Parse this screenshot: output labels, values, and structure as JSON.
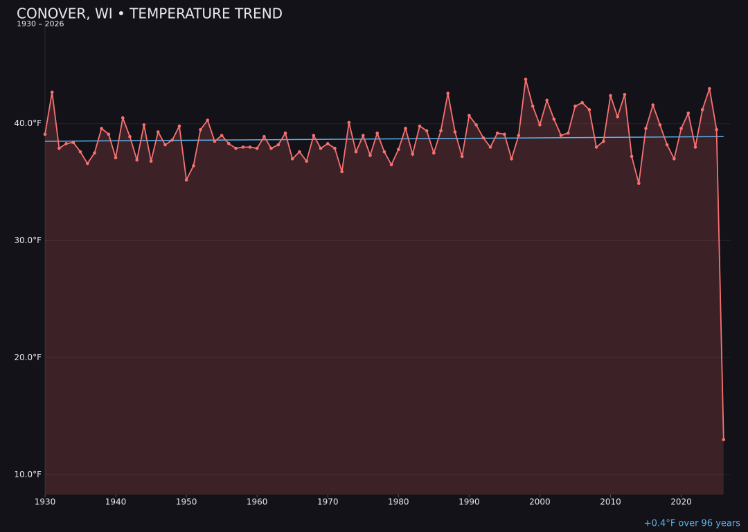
{
  "chart_data": {
    "type": "line",
    "title": "CONOVER, WI • TEMPERATURE TREND",
    "subtitle": "1930 – 2026",
    "annotation": "+0.4°F over 96 years",
    "x": [
      1930,
      1931,
      1932,
      1933,
      1934,
      1935,
      1936,
      1937,
      1938,
      1939,
      1940,
      1941,
      1942,
      1943,
      1944,
      1945,
      1946,
      1947,
      1948,
      1949,
      1950,
      1951,
      1952,
      1953,
      1954,
      1955,
      1956,
      1957,
      1958,
      1959,
      1960,
      1961,
      1962,
      1963,
      1964,
      1965,
      1966,
      1967,
      1968,
      1969,
      1970,
      1971,
      1972,
      1973,
      1974,
      1975,
      1976,
      1977,
      1978,
      1979,
      1980,
      1981,
      1982,
      1983,
      1984,
      1985,
      1986,
      1987,
      1988,
      1989,
      1990,
      1991,
      1992,
      1993,
      1994,
      1995,
      1996,
      1997,
      1998,
      1999,
      2000,
      2001,
      2002,
      2003,
      2004,
      2005,
      2006,
      2007,
      2008,
      2009,
      2010,
      2011,
      2012,
      2013,
      2014,
      2015,
      2016,
      2017,
      2018,
      2019,
      2020,
      2021,
      2022,
      2023,
      2024,
      2025,
      2026
    ],
    "series": [
      {
        "color": "#f87171",
        "values": [
          39.1,
          42.7,
          37.9,
          38.3,
          38.4,
          37.6,
          36.6,
          37.5,
          39.6,
          39.1,
          37.1,
          40.5,
          38.9,
          36.9,
          39.9,
          36.8,
          39.3,
          38.2,
          38.6,
          39.8,
          35.2,
          36.4,
          39.5,
          40.3,
          38.5,
          39.0,
          38.3,
          37.9,
          38.0,
          38.0,
          37.9,
          38.9,
          37.9,
          38.2,
          39.2,
          37.0,
          37.6,
          36.8,
          39.0,
          37.9,
          38.3,
          37.9,
          35.9,
          40.1,
          37.6,
          39.0,
          37.3,
          39.2,
          37.6,
          36.5,
          37.8,
          39.6,
          37.4,
          39.8,
          39.4,
          37.5,
          39.4,
          42.6,
          39.3,
          37.2,
          40.7,
          39.9,
          38.8,
          38.0,
          39.2,
          39.1,
          37.0,
          39.0,
          43.8,
          41.5,
          39.9,
          42.0,
          40.4,
          39.0,
          39.2,
          41.5,
          41.8,
          41.2,
          38.0,
          38.5,
          42.4,
          40.6,
          42.5,
          37.2,
          34.9,
          39.6,
          41.6,
          39.9,
          38.2,
          37.0,
          39.6,
          40.9,
          38.0,
          41.2,
          43.0,
          39.5,
          13.0
        ]
      }
    ],
    "trend": {
      "color": "#5ab4f0",
      "x": [
        1930,
        2026
      ],
      "values": [
        38.5,
        38.9
      ]
    },
    "xlim": [
      1930,
      2027
    ],
    "ylim": [
      8.3,
      48.8
    ],
    "xticks": [
      1930,
      1940,
      1950,
      1960,
      1970,
      1980,
      1990,
      2000,
      2010,
      2020
    ],
    "yticks": [
      {
        "value": 10,
        "label": "10.0°F"
      },
      {
        "value": 20,
        "label": "20.0°F"
      },
      {
        "value": 30,
        "label": "30.0°F"
      },
      {
        "value": 40,
        "label": "40.0°F"
      }
    ],
    "grid": true
  }
}
